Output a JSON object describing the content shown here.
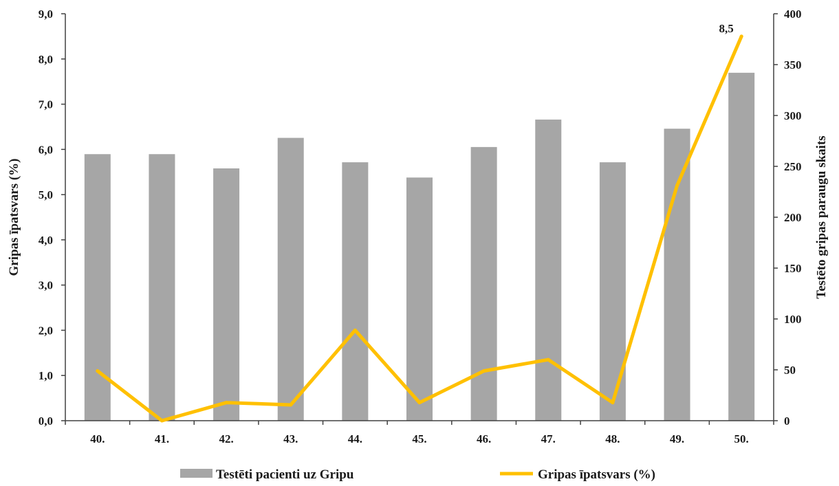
{
  "chart_data": {
    "type": "bar+line",
    "title": "",
    "categories": [
      "40.",
      "41.",
      "42.",
      "43.",
      "44.",
      "45.",
      "46.",
      "47.",
      "48.",
      "49.",
      "50."
    ],
    "series": [
      {
        "name": "Testēti pacienti uz Gripu",
        "type": "bar",
        "axis": "right",
        "color": "#a6a6a6",
        "values": [
          262,
          262,
          248,
          278,
          254,
          239,
          269,
          296,
          254,
          287,
          342
        ]
      },
      {
        "name": "Gripas īpatsvars (%)",
        "type": "line",
        "axis": "left",
        "color": "#ffc000",
        "values": [
          1.1,
          0.0,
          0.4,
          0.35,
          2.0,
          0.4,
          1.1,
          1.35,
          0.4,
          5.2,
          8.5
        ]
      }
    ],
    "data_labels": [
      {
        "series": "Gripas īpatsvars (%)",
        "category": "50.",
        "text": "8,5"
      }
    ],
    "left_axis": {
      "label": "Gripas īpatsvars (%)",
      "ylim": [
        0,
        9
      ],
      "ticks": [
        "0,0",
        "1,0",
        "2,0",
        "3,0",
        "4,0",
        "5,0",
        "6,0",
        "7,0",
        "8,0",
        "9,0"
      ]
    },
    "right_axis": {
      "label": "Testēto gripas paraugu skaits",
      "ylim": [
        0,
        400
      ],
      "ticks": [
        "0",
        "50",
        "100",
        "150",
        "200",
        "250",
        "300",
        "350",
        "400"
      ]
    },
    "grid": false,
    "legend": {
      "position": "bottom",
      "entries": [
        "Testēti pacienti uz Gripu",
        "Gripas īpatsvars (%)"
      ]
    }
  }
}
